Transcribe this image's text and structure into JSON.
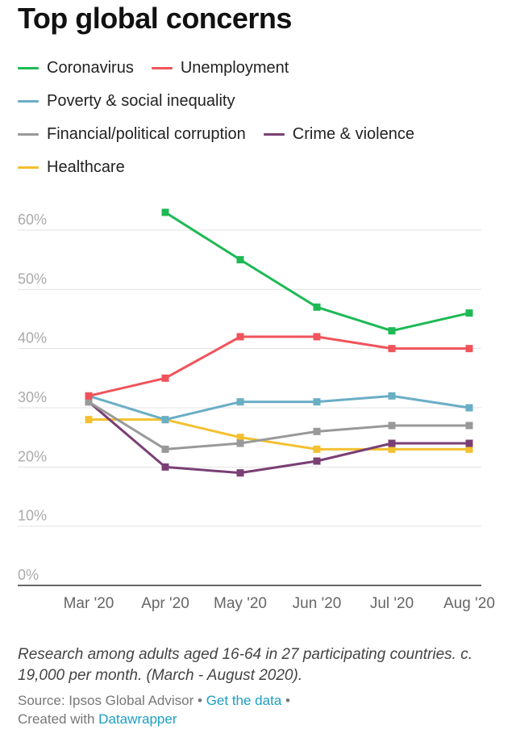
{
  "header": {
    "title": "Top global concerns"
  },
  "chart_data": {
    "type": "line",
    "title": "Top global concerns",
    "x": [
      "Mar '20",
      "Apr '20",
      "May '20",
      "Jun '20",
      "Jul '20",
      "Aug '20"
    ],
    "y_ticks": [
      "0%",
      "10%",
      "20%",
      "30%",
      "40%",
      "50%",
      "60%"
    ],
    "ylim": [
      0,
      60
    ],
    "grid": true,
    "legend_position": "top",
    "series": [
      {
        "name": "Coronavirus",
        "color": "#1db954",
        "values": [
          null,
          63,
          55,
          47,
          43,
          46
        ]
      },
      {
        "name": "Unemployment",
        "color": "#f0545b",
        "values": [
          32,
          35,
          42,
          42,
          40,
          40
        ]
      },
      {
        "name": "Poverty & social inequality",
        "color": "#6aaec6",
        "values": [
          32,
          28,
          31,
          31,
          32,
          30
        ]
      },
      {
        "name": "Financial/political corruption",
        "color": "#999999",
        "values": [
          31,
          23,
          24,
          26,
          27,
          27
        ]
      },
      {
        "name": "Crime & violence",
        "color": "#7a3f74",
        "values": [
          31,
          20,
          19,
          21,
          24,
          24
        ]
      },
      {
        "name": "Healthcare",
        "color": "#f3c030",
        "values": [
          28,
          28,
          25,
          23,
          23,
          23
        ]
      }
    ]
  },
  "footer": {
    "note": "Research among adults aged 16-64 in 27 participating countries. c. 19,000 per month. (March - August 2020).",
    "source_prefix": "Source: Ipsos Global Advisor",
    "separator": "•",
    "get_data": "Get the data",
    "created_with": "Created with",
    "datawrapper": "Datawrapper"
  }
}
